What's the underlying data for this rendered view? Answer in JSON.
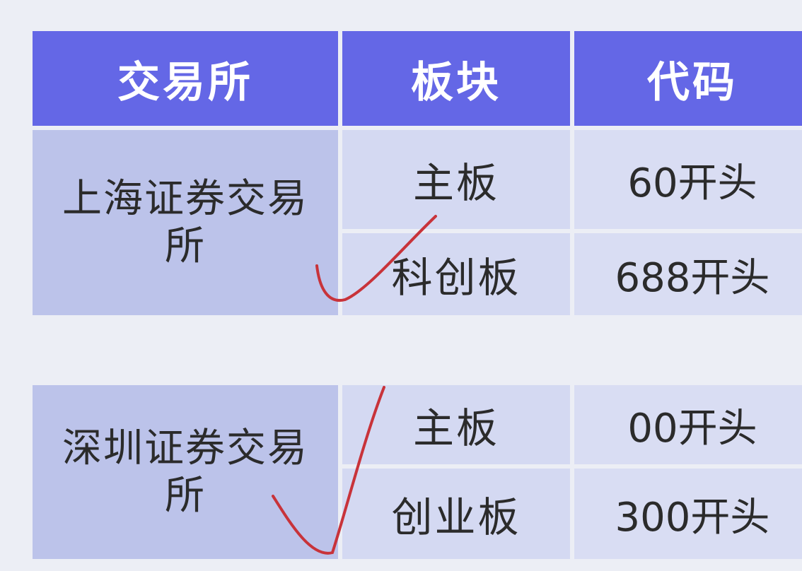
{
  "table": {
    "headers": {
      "exchange": "交易所",
      "board": "板块",
      "code": "代码"
    },
    "groups": [
      {
        "exchange": "上海证券交易所",
        "rows": [
          {
            "board": "主板",
            "code": "60开头"
          },
          {
            "board": "科创板",
            "code": "688开头"
          }
        ]
      },
      {
        "exchange": "深圳证券交易所",
        "rows": [
          {
            "board": "主板",
            "code": "00开头"
          },
          {
            "board": "创业板",
            "code": "300开头"
          }
        ]
      }
    ]
  },
  "colors": {
    "header": "#6467e6",
    "exchange_cell": "#bcc3ea",
    "data_cell": "#d4d9f2",
    "check_mark": "#c8333a"
  },
  "annotations": {
    "check_marks": [
      "check-mark-icon",
      "check-mark-icon"
    ]
  }
}
